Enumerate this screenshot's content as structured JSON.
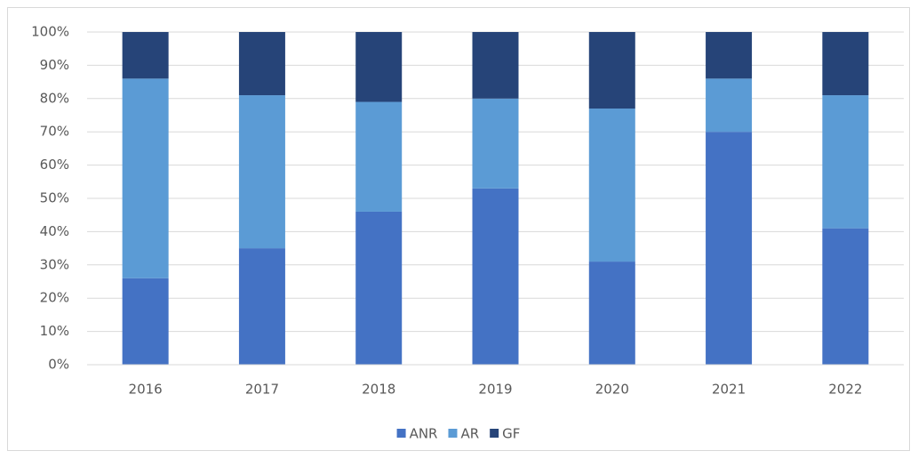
{
  "chart_data": {
    "type": "stacked_bar",
    "categories": [
      "2016",
      "2017",
      "2018",
      "2019",
      "2020",
      "2021",
      "2022"
    ],
    "series": [
      {
        "name": "ANR",
        "color": "#4472c4",
        "values": [
          26,
          35,
          46,
          53,
          31,
          70,
          41
        ]
      },
      {
        "name": "AR",
        "color": "#5b9bd5",
        "values": [
          60,
          46,
          33,
          27,
          46,
          16,
          40
        ]
      },
      {
        "name": "GF",
        "color": "#264478",
        "values": [
          14,
          19,
          21,
          20,
          23,
          14,
          19
        ]
      }
    ],
    "ylim": [
      0,
      100
    ],
    "yticks": [
      {
        "value": 0,
        "label": "0%"
      },
      {
        "value": 10,
        "label": "10%"
      },
      {
        "value": 20,
        "label": "20%"
      },
      {
        "value": 30,
        "label": "30%"
      },
      {
        "value": 40,
        "label": "40%"
      },
      {
        "value": 50,
        "label": "50%"
      },
      {
        "value": 60,
        "label": "60%"
      },
      {
        "value": 70,
        "label": "70%"
      },
      {
        "value": 80,
        "label": "80%"
      },
      {
        "value": 90,
        "label": "90%"
      },
      {
        "value": 100,
        "label": "100%"
      }
    ],
    "grid": true,
    "legend": "bottom"
  }
}
